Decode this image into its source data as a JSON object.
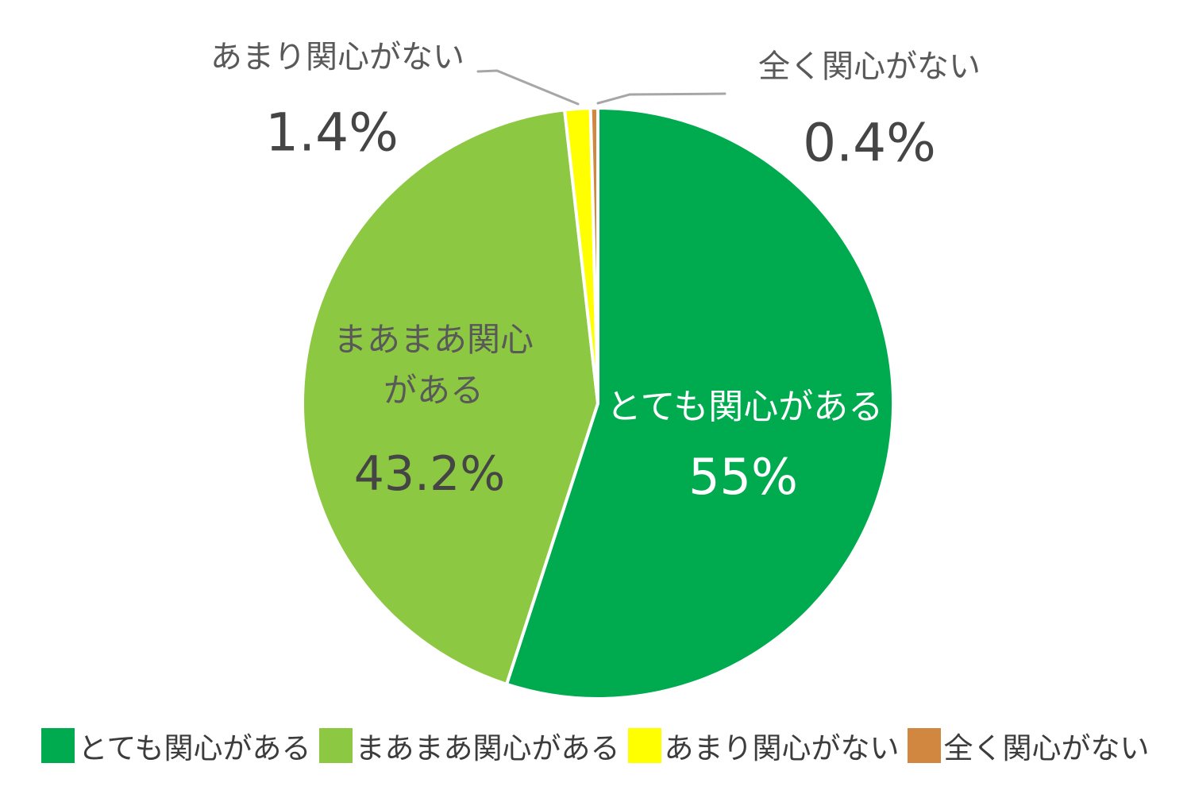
{
  "chart_data": {
    "type": "pie",
    "categories": [
      "とても関心がある",
      "まあまあ関心がある",
      "あまり関心がない",
      "全く関心がない"
    ],
    "values": [
      55,
      43.2,
      1.4,
      0.4
    ],
    "value_labels": [
      "55%",
      "43.2%",
      "1.4%",
      "0.4%"
    ],
    "colors": [
      "#00ab50",
      "#8cc841",
      "#ffff00",
      "#d28740"
    ],
    "start_angle_deg": 0,
    "direction": "clockwise",
    "slice_border_color": "#ffffff",
    "legend_position": "bottom",
    "title": ""
  },
  "labels": {
    "very_interested": {
      "name": "とても関心がある",
      "value": "55%"
    },
    "somewhat_interested": {
      "line1": "まあまあ関心",
      "line2": "がある",
      "value": "43.2%"
    },
    "not_very_interested": {
      "name": "あまり関心がない",
      "value": "1.4%"
    },
    "not_at_all": {
      "name": "全く関心がない",
      "value": "0.4%"
    }
  },
  "legend": {
    "items": [
      {
        "label": "とても関心がある",
        "color": "#00ab50"
      },
      {
        "label": "まあまあ関心がある",
        "color": "#8cc841"
      },
      {
        "label": "あまり関心がない",
        "color": "#ffff00"
      },
      {
        "label": "全く関心がない",
        "color": "#d28740"
      }
    ]
  },
  "style": {
    "label_gray": "#595959",
    "number_gray": "#454545",
    "legend_text": "#3c3c3c",
    "leader_line": "#a6a6a6",
    "background": "#ffffff"
  }
}
